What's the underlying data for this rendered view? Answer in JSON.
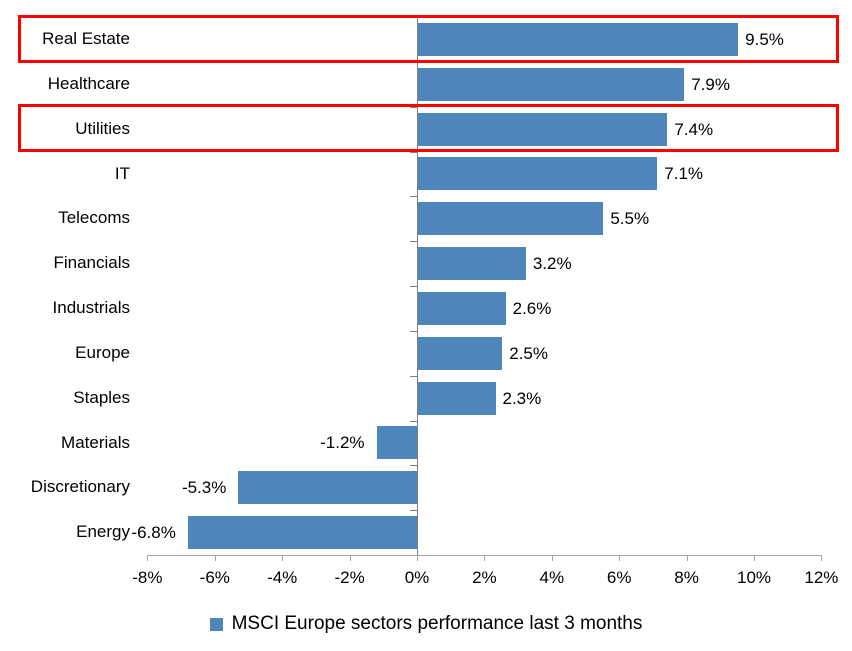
{
  "chart_data": {
    "type": "bar",
    "orientation": "horizontal",
    "title": "",
    "categories": [
      "Real Estate",
      "Healthcare",
      "Utilities",
      "IT",
      "Telecoms",
      "Financials",
      "Industrials",
      "Europe",
      "Staples",
      "Materials",
      "Discretionary",
      "Energy"
    ],
    "values": [
      9.5,
      7.9,
      7.4,
      7.1,
      5.5,
      3.2,
      2.6,
      2.5,
      2.3,
      -1.2,
      -5.3,
      -6.8
    ],
    "value_labels": [
      "9.5%",
      "7.9%",
      "7.4%",
      "7.1%",
      "5.5%",
      "3.2%",
      "2.6%",
      "2.5%",
      "2.3%",
      "-1.2%",
      "-5.3%",
      "-6.8%"
    ],
    "x_ticks": [
      -8,
      -6,
      -4,
      -2,
      0,
      2,
      4,
      6,
      8,
      10,
      12
    ],
    "x_tick_labels": [
      "-8%",
      "-6%",
      "-4%",
      "-2%",
      "0%",
      "2%",
      "4%",
      "6%",
      "8%",
      "10%",
      "12%"
    ],
    "xlim": [
      -8,
      12
    ],
    "grid": false,
    "legend_position": "bottom-center",
    "bar_color": "#4e86bb",
    "x_axis_color": "#a6a6a6",
    "zero_axis_color": "#7f7f7f",
    "highlight_color": "#ff0000",
    "highlights": [
      {
        "category": "Real Estate",
        "row": 0
      },
      {
        "category": "Utilities",
        "row": 2
      }
    ]
  },
  "legend": {
    "label": "MSCI Europe sectors performance last 3 months",
    "swatch_color": "#4e86bb"
  }
}
